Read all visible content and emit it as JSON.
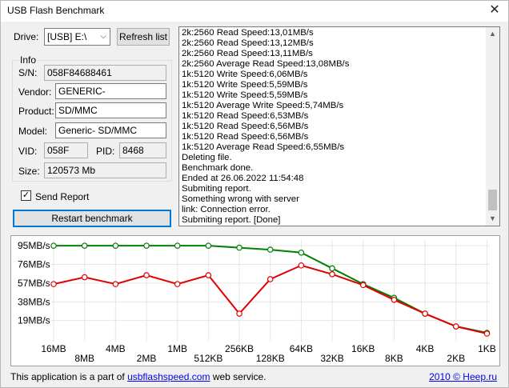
{
  "window": {
    "title": "USB Flash Benchmark",
    "close_glyph": "✕"
  },
  "drive": {
    "label": "Drive:",
    "selected": "[USB] E:\\",
    "refresh_label": "Refresh list"
  },
  "info": {
    "group_title": "Info",
    "sn_label": "S/N:",
    "sn": "058F84688461",
    "vendor_label": "Vendor:",
    "vendor": "GENERIC-",
    "product_label": "Product:",
    "product": "SD/MMC",
    "model_label": "Model:",
    "model": "Generic- SD/MMC",
    "vid_label": "VID:",
    "vid": "058F",
    "pid_label": "PID:",
    "pid": "8468",
    "size_label": "Size:",
    "size": "120573 Mb"
  },
  "send_report": {
    "label": "Send Report",
    "checked": true,
    "check_glyph": "✓"
  },
  "restart_label": "Restart benchmark",
  "log": [
    "2k:2560 Read Speed:13,01MB/s",
    "2k:2560 Read Speed:13,12MB/s",
    "2k:2560 Read Speed:13,11MB/s",
    "2k:2560 Average Read Speed:13,08MB/s",
    "1k:5120 Write Speed:6,06MB/s",
    "1k:5120 Write Speed:5,59MB/s",
    "1k:5120 Write Speed:5,59MB/s",
    "1k:5120 Average Write Speed:5,74MB/s",
    "1k:5120 Read Speed:6,53MB/s",
    "1k:5120 Read Speed:6,56MB/s",
    "1k:5120 Read Speed:6,56MB/s",
    "1k:5120 Average Read Speed:6,55MB/s",
    "Deleting file.",
    "Benchmark done.",
    "Ended at 26.06.2022 11:54:48",
    "Submiting report.",
    "Something wrong with server",
    "link: Connection error.",
    "Submiting report. [Done]"
  ],
  "footer": {
    "prefix": "This application is a part of ",
    "link": "usbflashspeed.com",
    "suffix": " web service.",
    "copyright": "2010 © Heep.ru"
  },
  "chart_data": {
    "type": "line",
    "categories": [
      "16MB",
      "8MB",
      "4MB",
      "2MB",
      "1MB",
      "512KB",
      "256KB",
      "128KB",
      "64KB",
      "32KB",
      "16KB",
      "8KB",
      "4KB",
      "2KB",
      "1KB"
    ],
    "y_ticks": [
      "95MB/s",
      "76MB/s",
      "57MB/s",
      "38MB/s",
      "19MB/s"
    ],
    "y_tick_values": [
      95,
      76,
      57,
      38,
      19
    ],
    "ylim": [
      0,
      100
    ],
    "grid": true,
    "series": [
      {
        "key": "read",
        "color": "#008000",
        "values": [
          95,
          95,
          95,
          95,
          95,
          95,
          93,
          91,
          88,
          72,
          56,
          42,
          26,
          13,
          6.5
        ]
      },
      {
        "key": "write",
        "color": "#e00000",
        "values": [
          56,
          63,
          56,
          65,
          56,
          65,
          26,
          61,
          75,
          66,
          55,
          40,
          26,
          13,
          5.7
        ]
      }
    ]
  }
}
